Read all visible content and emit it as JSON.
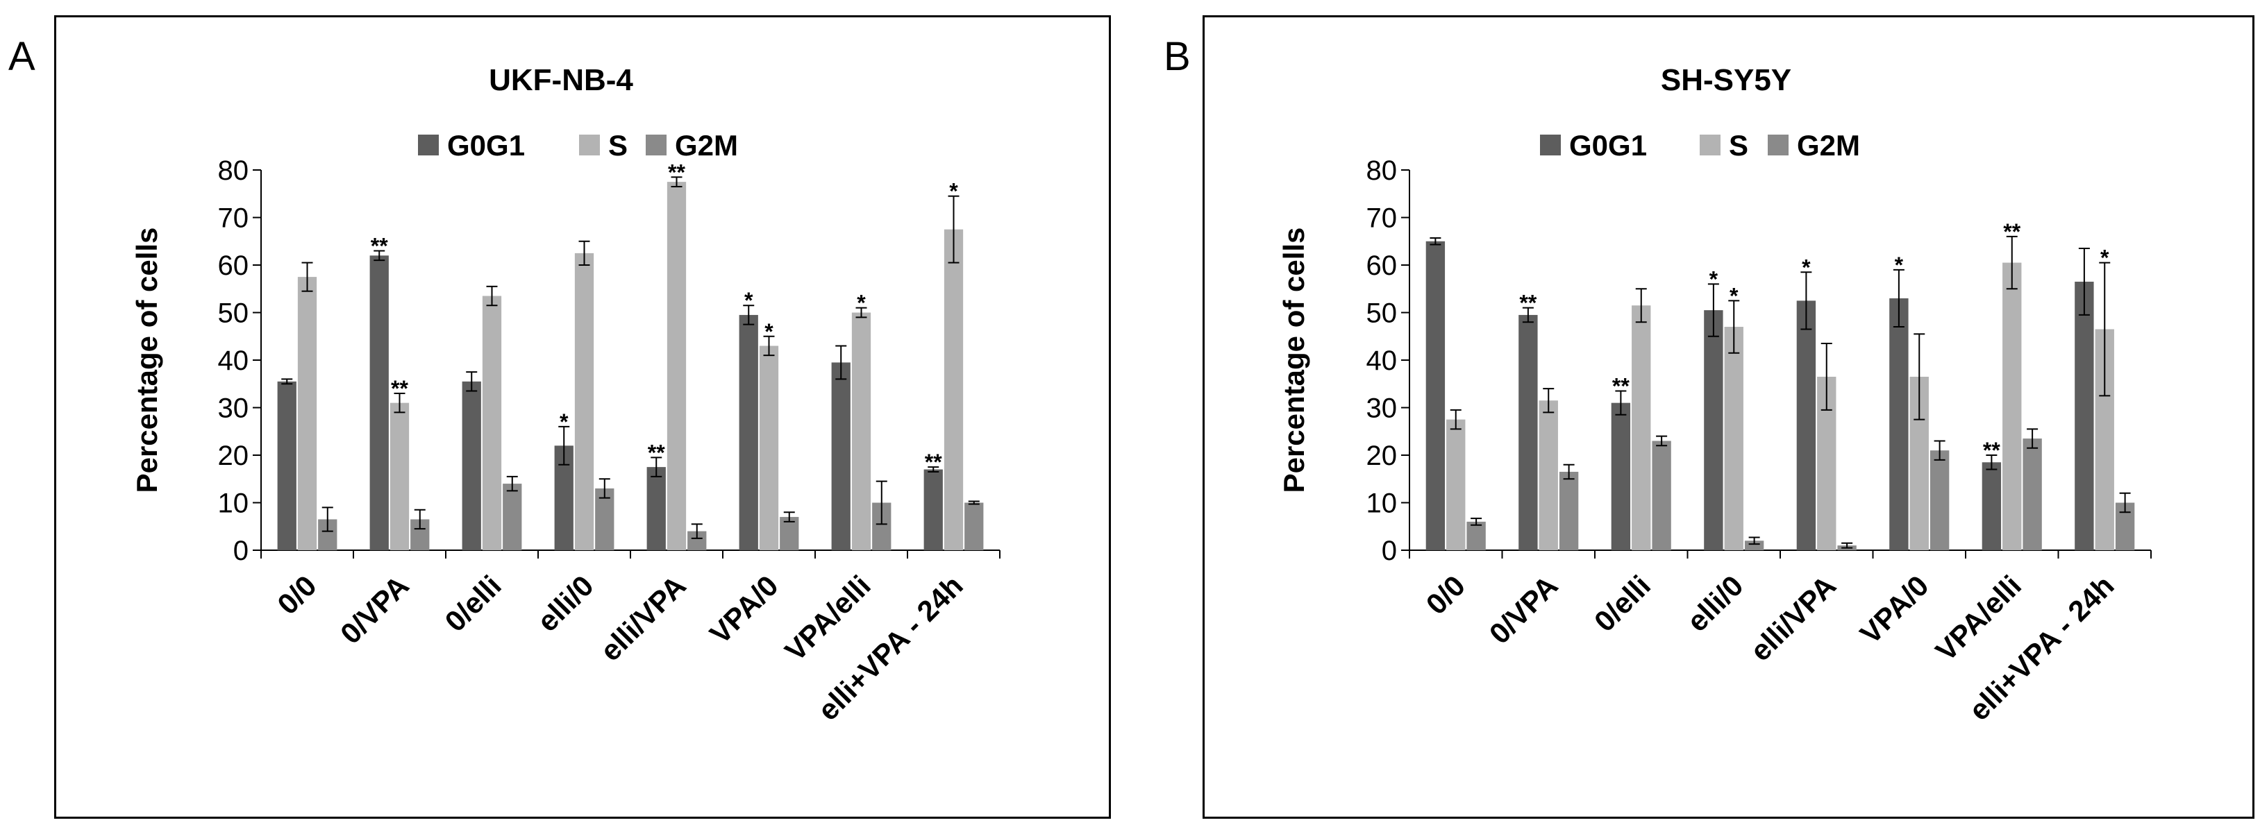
{
  "colors": {
    "G0G1": "#5d5d5d",
    "S": "#b3b3b3",
    "G2M": "#8a8a8a"
  },
  "chart_data": [
    {
      "panel": "A",
      "type": "bar",
      "title": "UKF-NB-4",
      "ylabel": "Percentage of cells",
      "xlabel": "",
      "ylim": [
        0,
        80
      ],
      "yticks": [
        0,
        10,
        20,
        30,
        40,
        50,
        60,
        70,
        80
      ],
      "legend": "top",
      "categories": [
        "0/0",
        "0/VPA",
        "0/elli",
        "elli/0",
        "elli/VPA",
        "VPA/0",
        "VPA/elli",
        "elli+VPA - 24h"
      ],
      "series": [
        {
          "name": "G0G1",
          "values": [
            35.5,
            62,
            35.5,
            22,
            17.5,
            49.5,
            39.5,
            17
          ],
          "errors": [
            0.5,
            1,
            2,
            4,
            2,
            2,
            3.5,
            0.5
          ],
          "sig": [
            "",
            "**",
            "",
            "*",
            "**",
            "*",
            "",
            "**"
          ]
        },
        {
          "name": "S",
          "values": [
            57.5,
            31,
            53.5,
            62.5,
            77.5,
            43,
            50,
            67.5
          ],
          "errors": [
            3,
            2,
            2,
            2.5,
            1,
            2,
            1,
            7
          ],
          "sig": [
            "",
            "**",
            "",
            "",
            "**",
            "*",
            "*",
            "*"
          ]
        },
        {
          "name": "G2M",
          "values": [
            6.5,
            6.5,
            14,
            13,
            4,
            7,
            10,
            10
          ],
          "errors": [
            2.5,
            2,
            1.5,
            2,
            1.5,
            1,
            4.5,
            0.3
          ],
          "sig": [
            "",
            "",
            "",
            "",
            "",
            "",
            "",
            ""
          ]
        }
      ]
    },
    {
      "panel": "B",
      "type": "bar",
      "title": "SH-SY5Y",
      "ylabel": "Percentage of cells",
      "xlabel": "",
      "ylim": [
        0,
        80
      ],
      "yticks": [
        0,
        10,
        20,
        30,
        40,
        50,
        60,
        70,
        80
      ],
      "legend": "top",
      "categories": [
        "0/0",
        "0/VPA",
        "0/elli",
        "elli/0",
        "elli/VPA",
        "VPA/0",
        "VPA/elli",
        "elli+VPA - 24h"
      ],
      "series": [
        {
          "name": "G0G1",
          "values": [
            65,
            49.5,
            31,
            50.5,
            52.5,
            53,
            18.5,
            56.5
          ],
          "errors": [
            0.7,
            1.5,
            2.5,
            5.5,
            6,
            6,
            1.5,
            7
          ],
          "sig": [
            "",
            "**",
            "**",
            "*",
            "*",
            "*",
            "**",
            ""
          ]
        },
        {
          "name": "S",
          "values": [
            27.5,
            31.5,
            51.5,
            47,
            36.5,
            36.5,
            60.5,
            46.5
          ],
          "errors": [
            2,
            2.5,
            3.5,
            5.5,
            7,
            9,
            5.5,
            14
          ],
          "sig": [
            "",
            "",
            "",
            "*",
            "",
            "",
            "**",
            "*"
          ]
        },
        {
          "name": "G2M",
          "values": [
            6,
            16.5,
            23,
            2,
            1,
            21,
            23.5,
            10
          ],
          "errors": [
            0.7,
            1.5,
            1,
            0.7,
            0.5,
            2,
            2,
            2
          ],
          "sig": [
            "",
            "",
            "",
            "",
            "",
            "",
            "",
            ""
          ]
        }
      ]
    }
  ]
}
